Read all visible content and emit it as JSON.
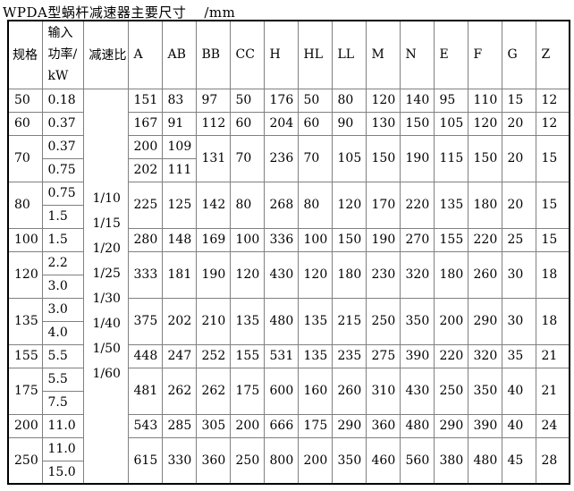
{
  "title": "WPDA型蜗杆减速器主要尺寸",
  "unit_label": "/mm",
  "colors": {
    "background": "#ffffff",
    "grid_line": "#808080",
    "outer_border": "#000000",
    "text": "#000000"
  },
  "table": {
    "col_headers": {
      "spec": "规格",
      "power": "输入功率/kW",
      "ratio": "减速比"
    },
    "dim_headers": [
      "A",
      "AB",
      "BB",
      "CC",
      "H",
      "HL",
      "LL",
      "M",
      "N",
      "E",
      "F",
      "G",
      "Z"
    ],
    "ratios": [
      "1/10",
      "1/15",
      "1/20",
      "1/25",
      "1/30",
      "1/40",
      "1/50",
      "1/60"
    ],
    "dims_order": [
      "BB",
      "CC",
      "H",
      "HL",
      "LL",
      "M",
      "N",
      "E",
      "F",
      "G",
      "Z"
    ],
    "groups": [
      {
        "spec": "50",
        "powers": [
          "0.18"
        ],
        "A": [
          "151"
        ],
        "AB": [
          "83"
        ],
        "dims": [
          "97",
          "50",
          "176",
          "50",
          "80",
          "120",
          "140",
          "95",
          "110",
          "15",
          "12"
        ]
      },
      {
        "spec": "60",
        "powers": [
          "0.37"
        ],
        "A": [
          "167"
        ],
        "AB": [
          "91"
        ],
        "dims": [
          "112",
          "60",
          "204",
          "60",
          "90",
          "130",
          "150",
          "105",
          "120",
          "20",
          "12"
        ]
      },
      {
        "spec": "70",
        "powers": [
          "0.37",
          "0.75"
        ],
        "A": [
          "200",
          "202"
        ],
        "AB": [
          "109",
          "111"
        ],
        "dims": [
          "131",
          "70",
          "236",
          "70",
          "105",
          "150",
          "190",
          "115",
          "150",
          "20",
          "15"
        ]
      },
      {
        "spec": "80",
        "powers": [
          "0.75",
          "1.5"
        ],
        "A": [
          "225"
        ],
        "AB": [
          "125"
        ],
        "dims": [
          "142",
          "80",
          "268",
          "80",
          "120",
          "170",
          "220",
          "135",
          "180",
          "20",
          "15"
        ]
      },
      {
        "spec": "100",
        "powers": [
          "1.5"
        ],
        "A": [
          "280"
        ],
        "AB": [
          "148"
        ],
        "dims": [
          "169",
          "100",
          "336",
          "100",
          "150",
          "190",
          "270",
          "155",
          "220",
          "25",
          "15"
        ]
      },
      {
        "spec": "120",
        "powers": [
          "2.2",
          "3.0"
        ],
        "A": [
          "333"
        ],
        "AB": [
          "181"
        ],
        "dims": [
          "190",
          "120",
          "430",
          "120",
          "180",
          "230",
          "320",
          "180",
          "260",
          "30",
          "18"
        ]
      },
      {
        "spec": "135",
        "powers": [
          "3.0",
          "4.0"
        ],
        "A": [
          "375"
        ],
        "AB": [
          "202"
        ],
        "dims": [
          "210",
          "135",
          "480",
          "135",
          "215",
          "250",
          "350",
          "200",
          "290",
          "30",
          "18"
        ]
      },
      {
        "spec": "155",
        "powers": [
          "5.5"
        ],
        "A": [
          "448"
        ],
        "AB": [
          "247"
        ],
        "dims": [
          "252",
          "155",
          "531",
          "135",
          "235",
          "275",
          "390",
          "220",
          "320",
          "35",
          "21"
        ]
      },
      {
        "spec": "175",
        "powers": [
          "5.5",
          "7.5"
        ],
        "A": [
          "481"
        ],
        "AB": [
          "262"
        ],
        "dims": [
          "262",
          "175",
          "600",
          "160",
          "260",
          "310",
          "430",
          "250",
          "350",
          "40",
          "21"
        ]
      },
      {
        "spec": "200",
        "powers": [
          "11.0"
        ],
        "A": [
          "543"
        ],
        "AB": [
          "285"
        ],
        "dims": [
          "305",
          "200",
          "666",
          "175",
          "290",
          "360",
          "480",
          "290",
          "390",
          "40",
          "24"
        ]
      },
      {
        "spec": "250",
        "powers": [
          "11.0",
          "15.0"
        ],
        "A": [
          "615"
        ],
        "AB": [
          "330"
        ],
        "dims": [
          "360",
          "250",
          "800",
          "200",
          "350",
          "460",
          "560",
          "380",
          "480",
          "45",
          "28"
        ]
      }
    ]
  }
}
